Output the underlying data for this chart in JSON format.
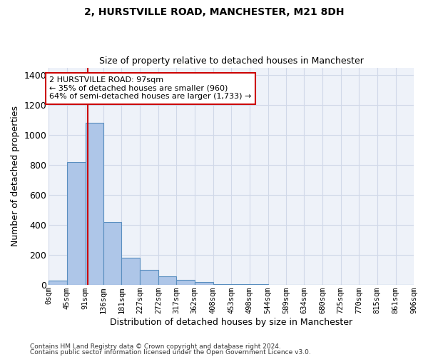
{
  "title1": "2, HURSTVILLE ROAD, MANCHESTER, M21 8DH",
  "title2": "Size of property relative to detached houses in Manchester",
  "xlabel": "Distribution of detached houses by size in Manchester",
  "ylabel": "Number of detached properties",
  "bar_values": [
    25,
    820,
    1080,
    420,
    180,
    100,
    55,
    32,
    18,
    5,
    2,
    1,
    0,
    0,
    0,
    0,
    0,
    0,
    0,
    0
  ],
  "bin_edges": [
    0,
    45,
    91,
    136,
    181,
    227,
    272,
    317,
    362,
    408,
    453,
    498,
    544,
    589,
    634,
    680,
    725,
    770,
    815,
    861,
    906
  ],
  "tick_labels": [
    "0sqm",
    "45sqm",
    "91sqm",
    "136sqm",
    "181sqm",
    "227sqm",
    "272sqm",
    "317sqm",
    "362sqm",
    "408sqm",
    "453sqm",
    "498sqm",
    "544sqm",
    "589sqm",
    "634sqm",
    "680sqm",
    "725sqm",
    "770sqm",
    "815sqm",
    "861sqm",
    "906sqm"
  ],
  "bar_color": "#aec6e8",
  "bar_edge_color": "#5a8fc0",
  "grid_color": "#d0d8e8",
  "vline_x": 97,
  "vline_color": "#cc0000",
  "annotation_line1": "2 HURSTVILLE ROAD: 97sqm",
  "annotation_line2": "← 35% of detached houses are smaller (960)",
  "annotation_line3": "64% of semi-detached houses are larger (1,733) →",
  "annotation_box_color": "#cc0000",
  "ylim": [
    0,
    1450
  ],
  "yticks": [
    0,
    200,
    400,
    600,
    800,
    1000,
    1200,
    1400
  ],
  "footer1": "Contains HM Land Registry data © Crown copyright and database right 2024.",
  "footer2": "Contains public sector information licensed under the Open Government Licence v3.0.",
  "bg_color": "#eef2f9",
  "title1_fontsize": 10,
  "title2_fontsize": 9
}
